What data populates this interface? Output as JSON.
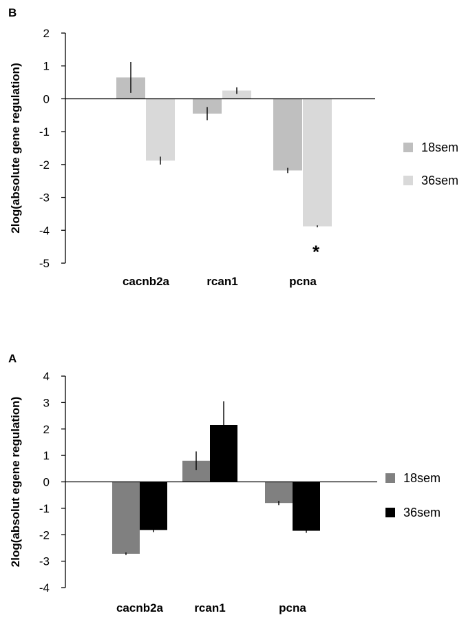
{
  "chart_data": [
    {
      "panel_label": "B",
      "type": "bar",
      "ylabel": "2log(absolute gene regulation)",
      "ylim": [
        -5,
        2
      ],
      "yticks": [
        "2",
        "1",
        "0",
        "-1",
        "-2",
        "-3",
        "-4",
        "-5"
      ],
      "categories": [
        "cacnb2a",
        "rcan1",
        "pcna"
      ],
      "series": [
        {
          "name": "18sem",
          "color": "#bfbfbf",
          "values": [
            0.65,
            -0.45,
            -2.18
          ],
          "errors": [
            0.47,
            0.2,
            0.08
          ]
        },
        {
          "name": "36sem",
          "color": "#d9d9d9",
          "values": [
            -1.88,
            0.25,
            -3.88
          ],
          "errors": [
            0.12,
            0.1,
            0.03
          ]
        }
      ],
      "annotations": [
        {
          "text": "*",
          "category": "pcna",
          "series": "36sem"
        }
      ],
      "legend": "right"
    },
    {
      "panel_label": "A",
      "type": "bar",
      "ylabel": "2log(absolut egene regulation)",
      "ylim": [
        -4,
        4
      ],
      "yticks": [
        "4",
        "3",
        "2",
        "1",
        "0",
        "-1",
        "-2",
        "-3",
        "-4"
      ],
      "categories": [
        "cacnb2a",
        "rcan1",
        "pcna"
      ],
      "series": [
        {
          "name": "18sem",
          "color": "#808080",
          "values": [
            -2.72,
            0.8,
            -0.8
          ],
          "errors": [
            0.05,
            0.35,
            0.08
          ]
        },
        {
          "name": "36sem",
          "color": "#000000",
          "values": [
            -1.82,
            2.15,
            -1.85
          ],
          "errors": [
            0.08,
            0.9,
            0.08
          ]
        }
      ],
      "annotations": [],
      "legend": "right"
    }
  ]
}
